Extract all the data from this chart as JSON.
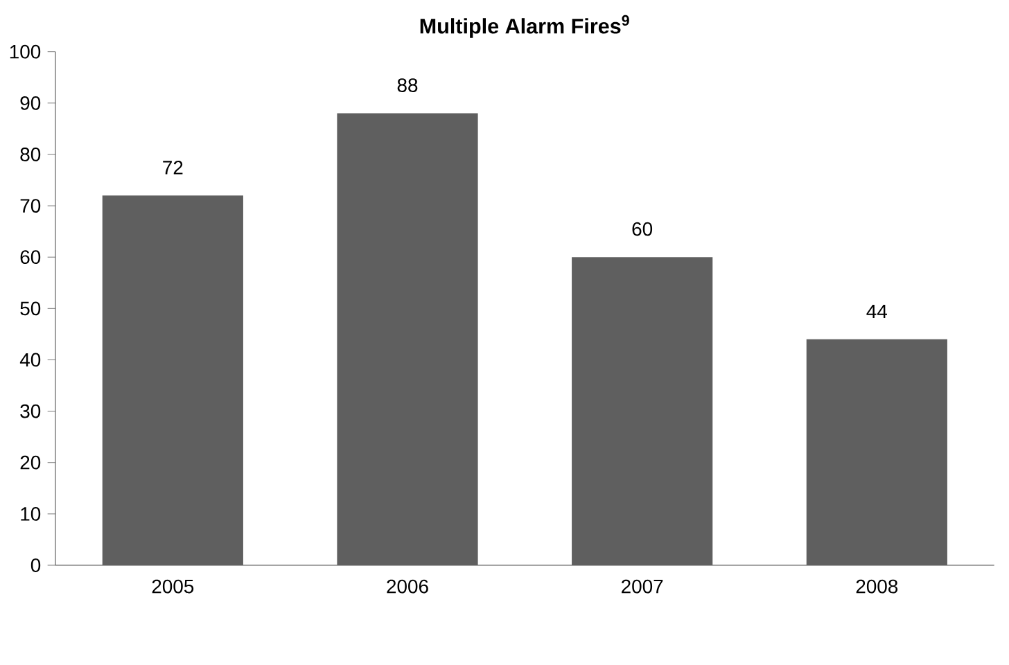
{
  "chart_data": {
    "type": "bar",
    "title": "Multiple Alarm Fires$^{9}$",
    "categories": [
      "2005",
      "2006",
      "2007",
      "2008"
    ],
    "values": [
      72,
      88,
      60,
      44
    ],
    "color": "#5f5f5f",
    "ylim": [
      0,
      100
    ],
    "yticks": [
      0,
      10,
      20,
      30,
      40,
      50,
      60,
      70,
      80,
      90,
      100
    ],
    "data_labels": true,
    "grid": false
  }
}
